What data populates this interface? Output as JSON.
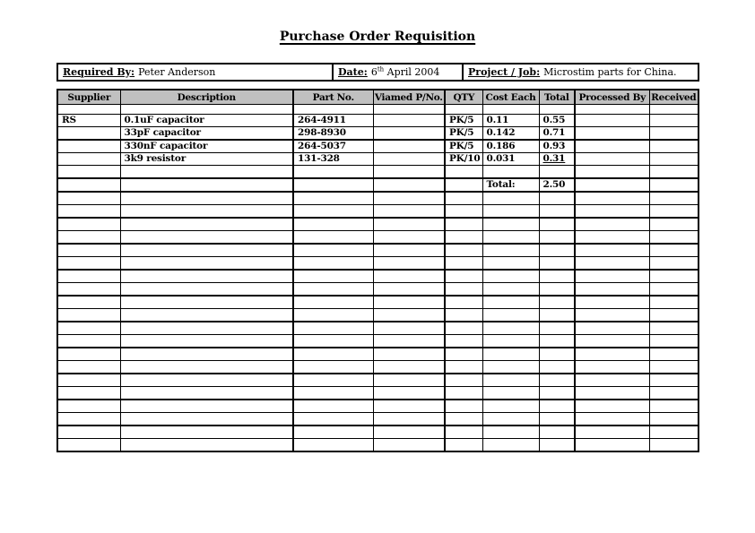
{
  "document": {
    "title": "Purchase Order Requisition"
  },
  "colors": {
    "table_header_bg": "#c0c0c0",
    "border": "#000000",
    "page_bg": "#ffffff"
  },
  "info_bar": {
    "required_by": {
      "label": "Required By:",
      "value": "Peter Anderson"
    },
    "date": {
      "label": "Date:",
      "day": "6",
      "ordinal": "th",
      "rest": "April 2004"
    },
    "project": {
      "label": "Project / Job:",
      "value": "Microstim parts for China."
    }
  },
  "table": {
    "headers": [
      "Supplier",
      "Description",
      "Part No.",
      "Viamed P/No.",
      "QTY",
      "Cost Each",
      "Total",
      "Processed By",
      "Received"
    ],
    "rows": [
      {
        "supplier": "RS",
        "description": "0.1uF capacitor",
        "part_no": "264-4911",
        "viamed_pno": "",
        "qty": "PK/5",
        "cost_each": "0.11",
        "total": "0.55",
        "processed_by": "",
        "received": ""
      },
      {
        "supplier": "",
        "description": "33pF capacitor",
        "part_no": "298-8930",
        "viamed_pno": "",
        "qty": "PK/5",
        "cost_each": "0.142",
        "total": "0.71",
        "processed_by": "",
        "received": ""
      },
      {
        "supplier": "",
        "description": "330nF capacitor",
        "part_no": "264-5037",
        "viamed_pno": "",
        "qty": "PK/5",
        "cost_each": "0.186",
        "total": "0.93",
        "processed_by": "",
        "received": ""
      },
      {
        "supplier": "",
        "description": "3k9 resistor",
        "part_no": "131-328",
        "viamed_pno": "",
        "qty": "PK/10",
        "cost_each": "0.031",
        "total": "0.31",
        "processed_by": "",
        "received": ""
      }
    ],
    "total_row": {
      "label": "Total:",
      "value": "2.50"
    },
    "empty_row_count": 20
  }
}
